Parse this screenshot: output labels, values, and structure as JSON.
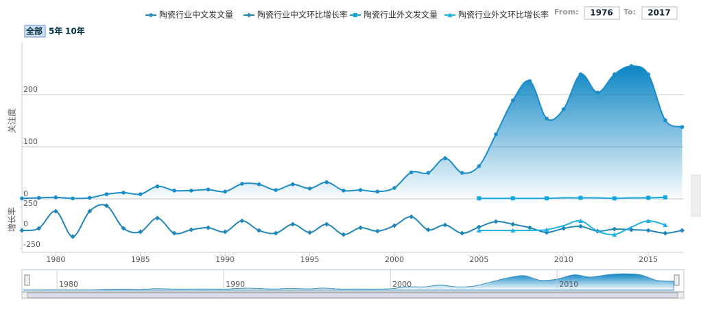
{
  "chart_data": {
    "type": "line",
    "ylabel": "关注度",
    "y2label": "增长率",
    "range_buttons": [
      "全部",
      "5年",
      "10年"
    ],
    "range_inputs": {
      "from_label": "From:",
      "from": "1976",
      "to_label": "To:",
      "to": "2017"
    },
    "x": [
      1978,
      1979,
      1980,
      1981,
      1982,
      1983,
      1984,
      1985,
      1986,
      1987,
      1988,
      1989,
      1990,
      1991,
      1992,
      1993,
      1994,
      1995,
      1996,
      1997,
      1998,
      1999,
      2000,
      2001,
      2002,
      2003,
      2004,
      2005,
      2006,
      2007,
      2008,
      2009,
      2010,
      2011,
      2012,
      2013,
      2014,
      2015,
      2016,
      2017
    ],
    "xlim": [
      1978,
      2017.1
    ],
    "xticks": [
      1980,
      1985,
      1990,
      1995,
      2000,
      2005,
      2010,
      2015
    ],
    "ylim": [
      0,
      300
    ],
    "yticks": [
      0,
      100,
      200
    ],
    "y2lim": [
      -300,
      300
    ],
    "y2ticks": [
      -250,
      0,
      250
    ],
    "grid": true,
    "legend": "top",
    "series": [
      {
        "name": "陶瓷行业中文发文量",
        "color": "#1a8cc8",
        "marker": "circle",
        "area": true,
        "values": [
          1,
          2,
          3,
          1,
          2,
          9,
          12,
          9,
          24,
          16,
          16,
          18,
          14,
          29,
          28,
          17,
          28,
          20,
          32,
          16,
          17,
          14,
          21,
          51,
          50,
          78,
          50,
          63,
          124,
          189,
          226,
          154,
          172,
          239,
          204,
          239,
          255,
          239,
          151,
          138
        ]
      },
      {
        "name": "陶瓷行业中文环比增长率",
        "color": "#1f86b8",
        "marker": "diamond",
        "axis": "y2",
        "values": [
          -33,
          -8,
          200,
          -108,
          200,
          267,
          -8,
          -50,
          117,
          -67,
          -25,
          0,
          -50,
          83,
          -33,
          -67,
          42,
          -58,
          42,
          -83,
          0,
          -42,
          25,
          133,
          -25,
          33,
          -67,
          8,
          75,
          42,
          0,
          -58,
          -8,
          17,
          -42,
          -17,
          -25,
          -33,
          -67,
          -33
        ]
      },
      {
        "name": "陶瓷行业外文发文量",
        "color": "#12a7e0",
        "marker": "square",
        "values": [
          null,
          null,
          null,
          null,
          null,
          null,
          null,
          null,
          null,
          null,
          null,
          null,
          null,
          null,
          null,
          null,
          null,
          null,
          null,
          null,
          null,
          null,
          null,
          null,
          null,
          null,
          null,
          1,
          1,
          1,
          1,
          1,
          2,
          2,
          2,
          1,
          2,
          2,
          3,
          null
        ]
      },
      {
        "name": "陶瓷行业外文环比增长率",
        "color": "#20b0e8",
        "marker": "triangle",
        "axis": "y2",
        "values": [
          null,
          null,
          null,
          null,
          null,
          null,
          null,
          null,
          null,
          null,
          null,
          null,
          null,
          null,
          null,
          null,
          null,
          null,
          null,
          null,
          null,
          null,
          null,
          null,
          null,
          null,
          null,
          -33,
          -33,
          -33,
          -33,
          -25,
          25,
          83,
          -42,
          -83,
          8,
          83,
          33,
          null
        ]
      }
    ],
    "navigator": {
      "xlim": [
        1977.9,
        2017.6
      ],
      "xticks": [
        1980,
        1990,
        2000,
        2010
      ]
    }
  }
}
